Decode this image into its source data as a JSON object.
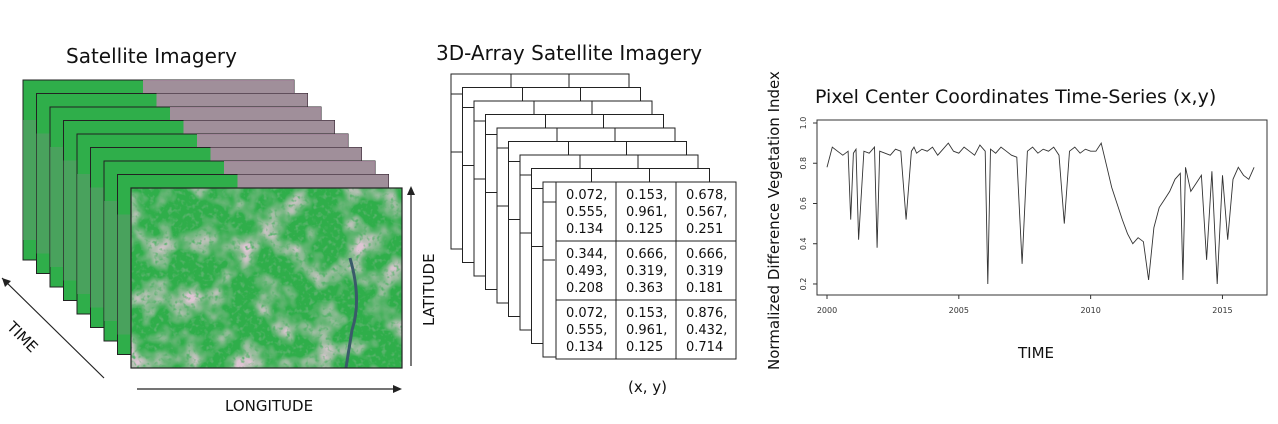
{
  "panel1": {
    "title": "Satellite Imagery",
    "axis_time": "TIME",
    "axis_longitude": "LONGITUDE",
    "axis_latitude": "LATITUDE",
    "colors": {
      "vegetation": "#2fae4a",
      "bare": "#b48aa8",
      "frame_border": "#222222"
    }
  },
  "panel2": {
    "title": "3D-Array Satellite Imagery",
    "grid": [
      [
        "0.072,\n0.555,\n0.134",
        "0.153,\n0.961,\n0.125",
        "0.678,\n0.567,\n0.251"
      ],
      [
        "0.344,\n0.493,\n0.208",
        "0.666,\n0.319,\n0.363",
        "0.666,\n0.319\n0.181"
      ],
      [
        "0.072,\n0.555,\n0.134",
        "0.153,\n0.961,\n0.125",
        "0.876,\n0.432,\n0.714"
      ]
    ],
    "pixel_label": "(x, y)"
  },
  "panel3": {
    "title": "Pixel Center Coordinates Time-Series (x,y)",
    "chart_data": {
      "type": "line",
      "title": "Pixel Center Coordinates Time-Series (x,y)",
      "xlabel": "TIME",
      "ylabel": "Normalized Difference Vegetation Index",
      "xlim": [
        2000,
        2016.5
      ],
      "ylim": [
        0.18,
        1.0
      ],
      "xticks": [
        2000,
        2005,
        2010,
        2015
      ],
      "xtick_labels": [
        "2000",
        "2005",
        "2010",
        "2015"
      ],
      "yticks": [
        0.2,
        0.4,
        0.6,
        0.8,
        1.0
      ],
      "ytick_labels": [
        "0.2",
        "0.4",
        "0.6",
        "0.8",
        "1.0"
      ],
      "series": [
        {
          "x": [
            2000.0,
            2000.2,
            2000.4,
            2000.6,
            2000.8,
            2000.9,
            2001.0,
            2001.1,
            2001.2,
            2001.4,
            2001.6,
            2001.8,
            2001.9,
            2002.0,
            2002.2,
            2002.4,
            2002.6,
            2002.8,
            2003.0,
            2003.2,
            2003.3,
            2003.4,
            2003.6,
            2003.8,
            2004.0,
            2004.2,
            2004.4,
            2004.6,
            2004.8,
            2005.0,
            2005.2,
            2005.4,
            2005.6,
            2005.8,
            2006.0,
            2006.1,
            2006.2,
            2006.4,
            2006.6,
            2006.8,
            2007.0,
            2007.2,
            2007.4,
            2007.6,
            2007.8,
            2008.0,
            2008.2,
            2008.4,
            2008.6,
            2008.8,
            2009.0,
            2009.2,
            2009.4,
            2009.6,
            2009.8,
            2010.0,
            2010.2,
            2010.4,
            2010.6,
            2010.8,
            2011.0,
            2011.2,
            2011.4,
            2011.6,
            2011.8,
            2012.0,
            2012.2,
            2012.4,
            2012.6,
            2012.8,
            2013.0,
            2013.2,
            2013.4,
            2013.5,
            2013.6,
            2013.8,
            2014.0,
            2014.2,
            2014.4,
            2014.6,
            2014.8,
            2015.0,
            2015.2,
            2015.4,
            2015.6,
            2015.8,
            2016.0,
            2016.2
          ],
          "y": [
            0.78,
            0.88,
            0.86,
            0.84,
            0.86,
            0.52,
            0.85,
            0.87,
            0.42,
            0.86,
            0.85,
            0.88,
            0.38,
            0.86,
            0.85,
            0.84,
            0.87,
            0.86,
            0.52,
            0.86,
            0.88,
            0.85,
            0.87,
            0.86,
            0.88,
            0.84,
            0.87,
            0.9,
            0.86,
            0.85,
            0.88,
            0.86,
            0.84,
            0.89,
            0.86,
            0.2,
            0.87,
            0.85,
            0.88,
            0.86,
            0.84,
            0.83,
            0.3,
            0.86,
            0.88,
            0.85,
            0.87,
            0.86,
            0.88,
            0.84,
            0.5,
            0.86,
            0.88,
            0.85,
            0.87,
            0.86,
            0.86,
            0.9,
            0.79,
            0.68,
            0.6,
            0.52,
            0.45,
            0.4,
            0.43,
            0.41,
            0.22,
            0.48,
            0.58,
            0.62,
            0.66,
            0.72,
            0.75,
            0.22,
            0.78,
            0.66,
            0.7,
            0.74,
            0.32,
            0.76,
            0.2,
            0.74,
            0.42,
            0.72,
            0.78,
            0.74,
            0.72,
            0.78
          ]
        }
      ]
    }
  }
}
